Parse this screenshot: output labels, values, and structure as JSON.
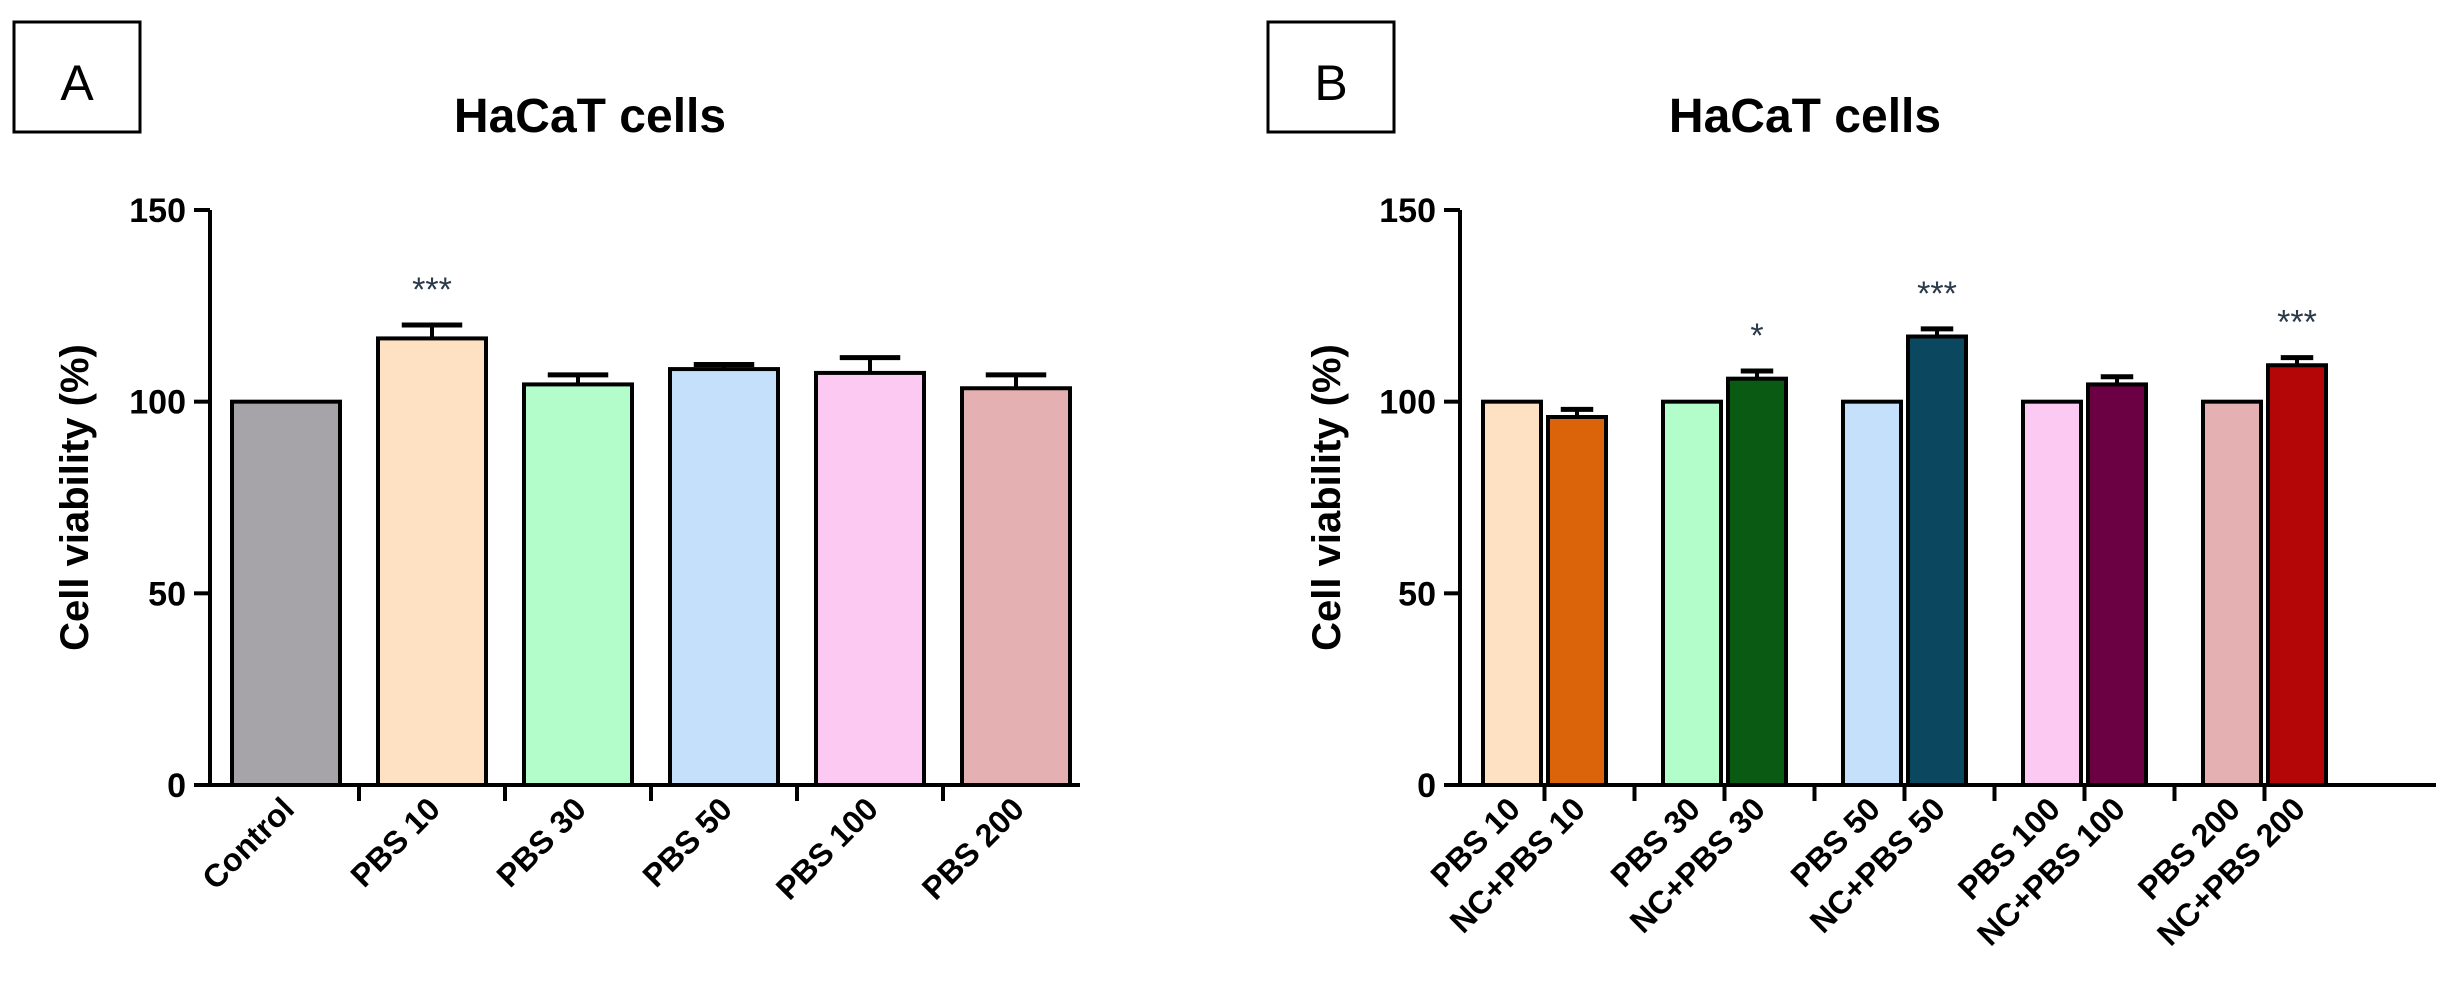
{
  "chart_data": [
    {
      "panel_label": "A",
      "type": "bar",
      "title": "HaCaT cells",
      "xlabel": "",
      "ylabel": "Cell viability (%)",
      "ylim": [
        0,
        150
      ],
      "yticks": [
        0,
        50,
        100,
        150
      ],
      "grid": false,
      "categories": [
        "Control",
        "PBS 10",
        "PBS 30",
        "PBS 50",
        "PBS 100",
        "PBS 200"
      ],
      "values": [
        100,
        116.5,
        104.5,
        108.5,
        107.5,
        103.5
      ],
      "errors": [
        0,
        3.5,
        2.5,
        1.2,
        4.0,
        3.5
      ],
      "colors": [
        "#a7a4a9",
        "#fde1c2",
        "#b2fdc9",
        "#c4e0fb",
        "#fbc9f1",
        "#e4b0b1"
      ],
      "annotations": [
        "",
        "***",
        "",
        "",
        "",
        ""
      ]
    },
    {
      "panel_label": "B",
      "type": "bar",
      "title": "HaCaT cells",
      "xlabel": "",
      "ylabel": "Cell viability (%)",
      "ylim": [
        0,
        150
      ],
      "yticks": [
        0,
        50,
        100,
        150
      ],
      "grid": false,
      "categories": [
        "PBS 10",
        "NC+PBS 10",
        "PBS 30",
        "NC+PBS 30",
        "PBS 50",
        "NC+PBS 50",
        "PBS 100",
        "NC+PBS 100",
        "PBS 200",
        "NC+PBS 200"
      ],
      "values": [
        100,
        96,
        100,
        106,
        100,
        117,
        100,
        104.5,
        100,
        109.5
      ],
      "errors": [
        0,
        2.0,
        0,
        2.0,
        0,
        2.0,
        0,
        2.0,
        0,
        2.0
      ],
      "colors": [
        "#fde1c2",
        "#db6309",
        "#b2fdc9",
        "#0a5a14",
        "#c4e0fb",
        "#0b475e",
        "#fbc9f1",
        "#6b0042",
        "#e4b0b1",
        "#b40606"
      ],
      "annotations": [
        "",
        "",
        "",
        "*",
        "",
        "***",
        "",
        "",
        "",
        "***"
      ]
    }
  ]
}
